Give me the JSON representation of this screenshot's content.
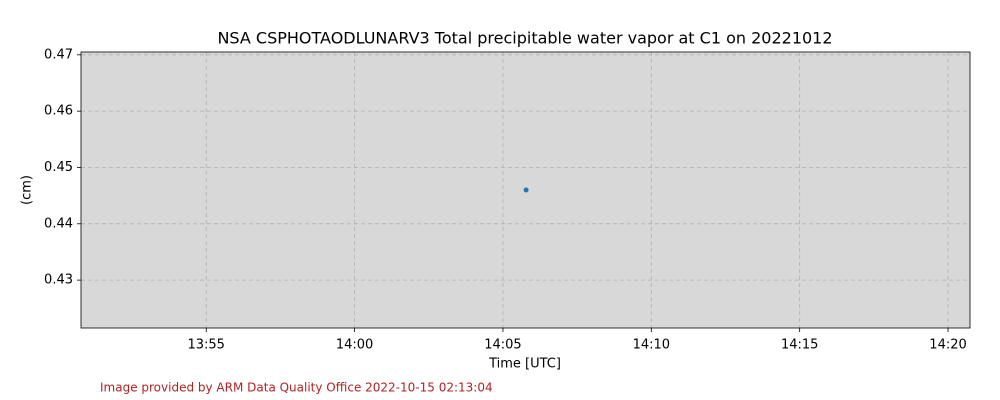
{
  "chart_data": {
    "type": "scatter",
    "title": "NSA CSPHOTAODLUNARV3 Total precipitable water vapor at C1 on 20221012",
    "x_label": "Time [UTC]",
    "y_label": "(cm)",
    "footer": "Image provided by ARM Data Quality Office 2022-10-15 02:13:04",
    "series": [
      {
        "color": "#1f77b4",
        "x": [
          845.78
        ],
        "values": [
          0.446
        ]
      }
    ],
    "xlim": [
      830.78,
      860.74
    ],
    "xticks": [
      {
        "value": 835,
        "label": "13:55"
      },
      {
        "value": 840,
        "label": "14:00"
      },
      {
        "value": 845,
        "label": "14:05"
      },
      {
        "value": 850,
        "label": "14:10"
      },
      {
        "value": 855,
        "label": "14:15"
      },
      {
        "value": 860,
        "label": "14:20"
      }
    ],
    "ylim": [
      0.4215,
      0.4705
    ],
    "yticks": [
      0.43,
      0.44,
      0.45,
      0.46,
      0.47
    ],
    "grid": true,
    "background": "#d8d8d8"
  }
}
